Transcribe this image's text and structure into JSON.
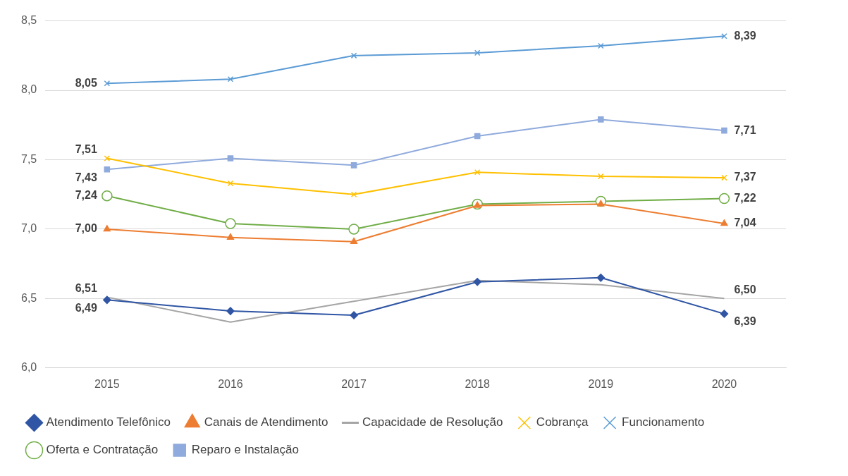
{
  "chart_data": {
    "type": "line",
    "categories": [
      "2015",
      "2016",
      "2017",
      "2018",
      "2019",
      "2020"
    ],
    "ylim": [
      6,
      8.5
    ],
    "yticks": [
      {
        "value": 6,
        "label": "6,0"
      },
      {
        "value": 6.5,
        "label": "6,5"
      },
      {
        "value": 7,
        "label": "7,0"
      },
      {
        "value": 7.5,
        "label": "7,5"
      },
      {
        "value": 8,
        "label": "8,0"
      },
      {
        "value": 8.5,
        "label": "8,5"
      }
    ],
    "grid": "y",
    "legend": "bottom",
    "series": [
      {
        "name": "Atendimento Telefônico",
        "color": "#2f55a4",
        "marker": "diamond",
        "values": [
          6.49,
          6.41,
          6.38,
          6.62,
          6.65,
          6.39
        ],
        "value_labels": [
          "6,49",
          null,
          null,
          null,
          null,
          "6,39"
        ]
      },
      {
        "name": "Canais de Atendimento",
        "color": "#ed7d31",
        "marker": "triangle",
        "values": [
          7.0,
          6.94,
          6.91,
          7.17,
          7.18,
          7.04
        ],
        "value_labels": [
          "7,00",
          null,
          null,
          null,
          null,
          "7,04"
        ]
      },
      {
        "name": "Capacidade de Resolução",
        "color": "#a5a5a5",
        "marker": "none",
        "values": [
          6.51,
          6.33,
          6.48,
          6.63,
          6.6,
          6.5
        ],
        "value_labels": [
          "6,51",
          null,
          null,
          null,
          null,
          "6,50"
        ]
      },
      {
        "name": "Cobrança",
        "color": "#ffc000",
        "marker": "cross",
        "values": [
          7.51,
          7.33,
          7.25,
          7.41,
          7.38,
          7.37
        ],
        "value_labels": [
          "7,51",
          null,
          null,
          null,
          null,
          "7,37"
        ]
      },
      {
        "name": "Funcionamento",
        "color": "#5b9bd5",
        "marker": "cross",
        "values": [
          8.05,
          8.08,
          8.25,
          8.27,
          8.32,
          8.39
        ],
        "value_labels": [
          "8,05",
          null,
          null,
          null,
          null,
          "8,39"
        ]
      },
      {
        "name": "Oferta e Contratação",
        "color": "#70ad47",
        "marker": "circle",
        "values": [
          7.24,
          7.04,
          7.0,
          7.18,
          7.2,
          7.22
        ],
        "value_labels": [
          "7,24",
          null,
          null,
          null,
          null,
          "7,22"
        ]
      },
      {
        "name": "Reparo e Instalação",
        "color": "#8faadc",
        "marker": "square",
        "values": [
          7.43,
          7.51,
          7.46,
          7.67,
          7.79,
          7.71
        ],
        "value_labels": [
          "7,43",
          null,
          null,
          null,
          null,
          "7,71"
        ]
      }
    ]
  }
}
